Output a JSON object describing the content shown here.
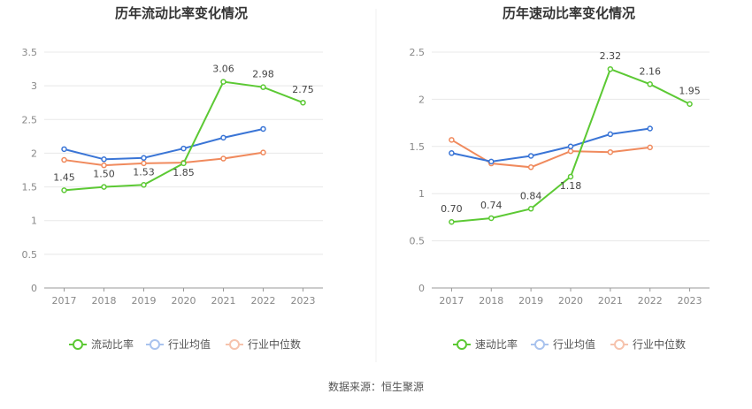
{
  "source_label": "数据来源：恒生聚源",
  "colors": {
    "main": "#5cc934",
    "avg": "#3a75d6",
    "median": "#f08a5d",
    "grid": "#e8e8e8",
    "axis": "#999999"
  },
  "chart_data": [
    {
      "type": "line",
      "title": "历年流动比率变化情况",
      "categories": [
        "2017",
        "2018",
        "2019",
        "2020",
        "2021",
        "2022",
        "2023"
      ],
      "ylim": [
        0,
        3.5
      ],
      "yticks": [
        "0",
        "0.5",
        "1",
        "1.5",
        "2",
        "2.5",
        "3",
        "3.5"
      ],
      "series": [
        {
          "name": "流动比率",
          "color": "#5cc934",
          "values": [
            1.45,
            1.5,
            1.53,
            1.85,
            3.06,
            2.98,
            2.75
          ],
          "labels": [
            "1.45",
            "1.50",
            "1.53",
            "1.85",
            "3.06",
            "2.98",
            "2.75"
          ]
        },
        {
          "name": "行业均值",
          "color": "#3a75d6",
          "values": [
            2.06,
            1.91,
            1.93,
            2.07,
            2.23,
            2.36,
            null
          ]
        },
        {
          "name": "行业中位数",
          "color": "#f08a5d",
          "values": [
            1.9,
            1.82,
            1.85,
            1.86,
            1.92,
            2.01,
            null
          ]
        }
      ]
    },
    {
      "type": "line",
      "title": "历年速动比率变化情况",
      "categories": [
        "2017",
        "2018",
        "2019",
        "2020",
        "2021",
        "2022",
        "2023"
      ],
      "ylim": [
        0,
        2.5
      ],
      "yticks": [
        "0",
        "0.5",
        "1",
        "1.5",
        "2",
        "2.5"
      ],
      "series": [
        {
          "name": "速动比率",
          "color": "#5cc934",
          "values": [
            0.7,
            0.74,
            0.84,
            1.18,
            2.32,
            2.16,
            1.95
          ],
          "labels": [
            "0.70",
            "0.74",
            "0.84",
            "1.18",
            "2.32",
            "2.16",
            "1.95"
          ]
        },
        {
          "name": "行业均值",
          "color": "#3a75d6",
          "values": [
            1.43,
            1.34,
            1.4,
            1.5,
            1.63,
            1.69,
            null
          ]
        },
        {
          "name": "行业中位数",
          "color": "#f08a5d",
          "values": [
            1.57,
            1.32,
            1.28,
            1.45,
            1.44,
            1.49,
            null
          ]
        }
      ]
    }
  ]
}
